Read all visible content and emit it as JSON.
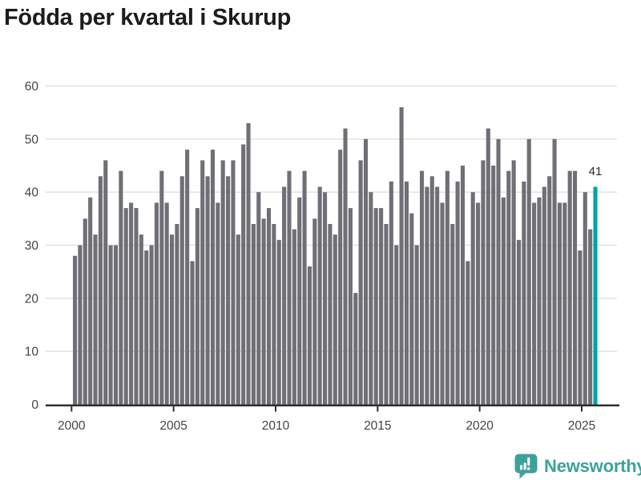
{
  "title": "Födda per kvartal i Skurup",
  "branding": {
    "name": "Newsworthy",
    "color": "#3BA29B",
    "icon": "speech-bubble-bar-chart"
  },
  "chart_data": {
    "type": "bar",
    "title": "Födda per kvartal i Skurup",
    "frequency": "quarterly",
    "start_period": "2000-Q1",
    "end_period": "2025-Q3",
    "values": [
      28,
      30,
      35,
      39,
      32,
      43,
      46,
      30,
      30,
      44,
      37,
      38,
      37,
      32,
      29,
      30,
      38,
      44,
      38,
      32,
      34,
      43,
      48,
      27,
      37,
      46,
      43,
      48,
      38,
      46,
      43,
      46,
      32,
      49,
      53,
      34,
      40,
      35,
      37,
      34,
      31,
      41,
      44,
      33,
      39,
      44,
      26,
      35,
      41,
      40,
      34,
      32,
      48,
      52,
      37,
      21,
      46,
      50,
      40,
      37,
      37,
      34,
      42,
      30,
      56,
      42,
      36,
      30,
      44,
      41,
      43,
      41,
      38,
      44,
      34,
      42,
      45,
      27,
      40,
      38,
      46,
      52,
      45,
      50,
      39,
      44,
      46,
      31,
      42,
      50,
      38,
      39,
      41,
      43,
      50,
      38,
      38,
      44,
      44,
      29,
      40,
      33,
      41
    ],
    "highlight_index": 102,
    "highlight_value_label": "41",
    "y_ticks": [
      0,
      10,
      20,
      30,
      40,
      50,
      60
    ],
    "ylim": [
      0,
      60
    ],
    "x_tick_years": [
      "2000",
      "2005",
      "2010",
      "2015",
      "2020",
      "2025"
    ],
    "grid": true,
    "legend": false,
    "bar_color": "#6F6F75",
    "highlight_color": "#00A3A3",
    "grid_color": "#E3E3E3",
    "axis_color": "#2F2F33",
    "tick_label_color": "#444444",
    "annotation_color": "#2B2B2B"
  }
}
